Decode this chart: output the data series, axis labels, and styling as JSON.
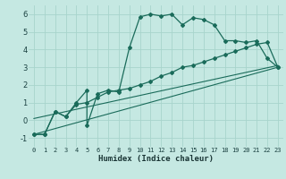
{
  "xlabel": "Humidex (Indice chaleur)",
  "background_color": "#c5e8e2",
  "grid_color": "#a8d4cc",
  "line_color": "#1a6b5a",
  "xlim": [
    -0.5,
    23.5
  ],
  "ylim": [
    -1.5,
    6.5
  ],
  "yticks": [
    -1,
    0,
    1,
    2,
    3,
    4,
    5,
    6
  ],
  "xticks": [
    0,
    1,
    2,
    3,
    4,
    5,
    6,
    7,
    8,
    9,
    10,
    11,
    12,
    13,
    14,
    15,
    16,
    17,
    18,
    19,
    20,
    21,
    22,
    23
  ],
  "line1_x": [
    0,
    1,
    2,
    3,
    4,
    5,
    5,
    6,
    7,
    8,
    9,
    10,
    11,
    12,
    13,
    14,
    15,
    16,
    17,
    18,
    19,
    20,
    21,
    22,
    23
  ],
  "line1_y": [
    -0.8,
    -0.8,
    0.5,
    0.2,
    1.0,
    1.7,
    -0.3,
    1.5,
    1.7,
    1.6,
    4.1,
    5.85,
    6.0,
    5.9,
    6.0,
    5.4,
    5.8,
    5.7,
    5.4,
    4.5,
    4.5,
    4.4,
    4.5,
    3.5,
    3.0
  ],
  "line2_x": [
    0,
    1,
    2,
    3,
    4,
    5,
    6,
    7,
    8,
    9,
    10,
    11,
    12,
    13,
    14,
    15,
    16,
    17,
    18,
    19,
    20,
    21,
    22,
    23
  ],
  "line2_y": [
    -0.8,
    -0.8,
    0.5,
    0.2,
    0.9,
    1.0,
    1.3,
    1.6,
    1.7,
    1.8,
    2.0,
    2.2,
    2.5,
    2.7,
    3.0,
    3.1,
    3.3,
    3.5,
    3.7,
    3.9,
    4.1,
    4.3,
    4.4,
    3.0
  ],
  "line3_x": [
    0,
    23
  ],
  "line3_y": [
    -0.8,
    3.0
  ],
  "line4_x": [
    0,
    23
  ],
  "line4_y": [
    0.1,
    3.1
  ]
}
